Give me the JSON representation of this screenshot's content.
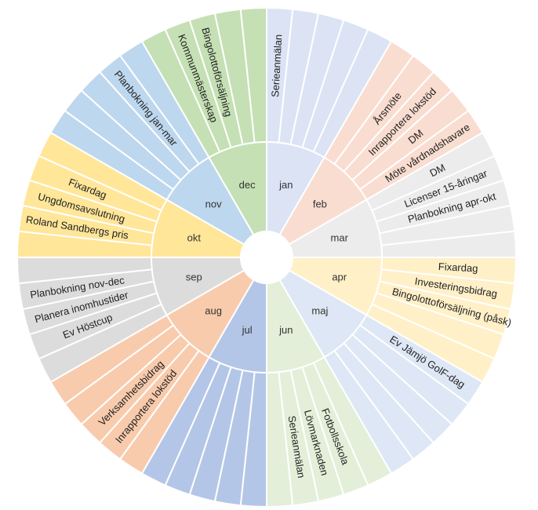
{
  "chart_data": {
    "type": "sunburst",
    "title": "",
    "months": [
      {
        "name": "jan",
        "color": "#dbe3f5",
        "events": [
          "Serieanmälan",
          "",
          "",
          "",
          ""
        ]
      },
      {
        "name": "feb",
        "color": "#f9ddd0",
        "events": [
          "",
          "Årsmöte",
          "Inrapportera lokstöd",
          "DM",
          "Möte vårdnadshavare"
        ]
      },
      {
        "name": "mar",
        "color": "#ececec",
        "events": [
          "DM",
          "Licenser 15-åringar",
          "Planbokning apr-okt",
          "",
          ""
        ]
      },
      {
        "name": "apr",
        "color": "#fff0c8",
        "events": [
          "Fixardag",
          "Investeringsbidrag",
          "Bingolottoförsäljning (påsk)",
          "",
          ""
        ]
      },
      {
        "name": "maj",
        "color": "#dee7f5",
        "events": [
          "Ev Jämjö GolF-dag",
          "",
          "",
          "",
          ""
        ]
      },
      {
        "name": "jun",
        "color": "#e3efd9",
        "events": [
          "",
          "Fotbollsskola",
          "Lövmarknaden",
          "Serieanmälan",
          ""
        ]
      },
      {
        "name": "jul",
        "color": "#b4c6e7",
        "events": [
          "",
          "",
          "",
          "",
          ""
        ]
      },
      {
        "name": "aug",
        "color": "#f8cbad",
        "events": [
          "",
          "Inrapportera lokstöd",
          "Verksamhetsbidrag",
          "",
          ""
        ]
      },
      {
        "name": "sep",
        "color": "#dcdcdc",
        "events": [
          "",
          "Ev Höstcup",
          "Planera inomhustider",
          "Planbokning nov-dec",
          ""
        ]
      },
      {
        "name": "okt",
        "color": "#ffe699",
        "events": [
          "",
          "Roland Sandbergs pris",
          "Ungdomsavslutning",
          "Fixardag",
          ""
        ]
      },
      {
        "name": "nov",
        "color": "#bdd7ee",
        "events": [
          "",
          "",
          "",
          "Planbokning jan-mar",
          ""
        ]
      },
      {
        "name": "dec",
        "color": "#c5e0b4",
        "events": [
          "",
          "Kommunmästerskap",
          "Bingolottoförsäljning",
          "",
          ""
        ]
      }
    ]
  }
}
